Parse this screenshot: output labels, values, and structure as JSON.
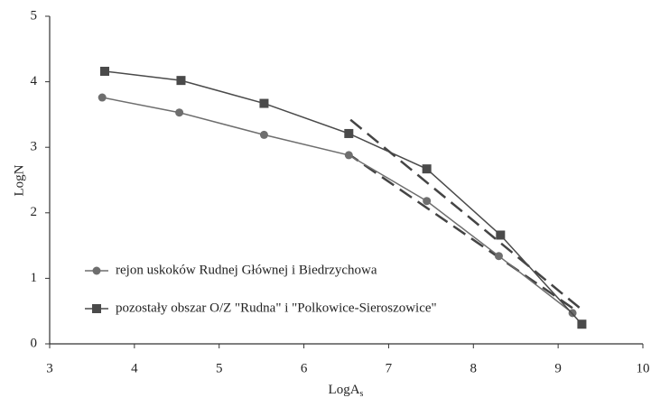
{
  "chart_data": {
    "type": "line",
    "xlabel": "LogA",
    "xlabel_sub": "s",
    "ylabel": "LogN",
    "xlim": [
      3,
      10
    ],
    "xticks": [
      3,
      4,
      5,
      6,
      7,
      8,
      9,
      10
    ],
    "ylim": [
      0,
      5
    ],
    "yticks": [
      0,
      1,
      2,
      3,
      4,
      5
    ],
    "legend": "lower-left",
    "series": [
      {
        "name": "rejon uskoków Rudnej Głównej i Biedrzychowa",
        "color": "#6e6e6e",
        "marker": "circle",
        "x": [
          3.62,
          4.53,
          5.53,
          6.53,
          7.45,
          8.3,
          9.17
        ],
        "values": [
          3.76,
          3.53,
          3.19,
          2.88,
          2.18,
          1.34,
          0.47
        ]
      },
      {
        "name": "pozostały obszar O/Z \"Rudna\" i \"Polkowice-Sieroszowice\"",
        "color": "#4a4a4a",
        "marker": "square",
        "x": [
          3.65,
          4.55,
          5.53,
          6.53,
          7.45,
          8.32,
          9.28
        ],
        "values": [
          4.16,
          4.02,
          3.67,
          3.21,
          2.67,
          1.66,
          0.3
        ]
      }
    ],
    "fits": [
      {
        "color": "#444444",
        "x": [
          6.5,
          9.2
        ],
        "values": [
          2.92,
          0.52
        ]
      },
      {
        "color": "#444444",
        "x": [
          6.55,
          9.3
        ],
        "values": [
          3.42,
          0.5
        ]
      }
    ]
  }
}
